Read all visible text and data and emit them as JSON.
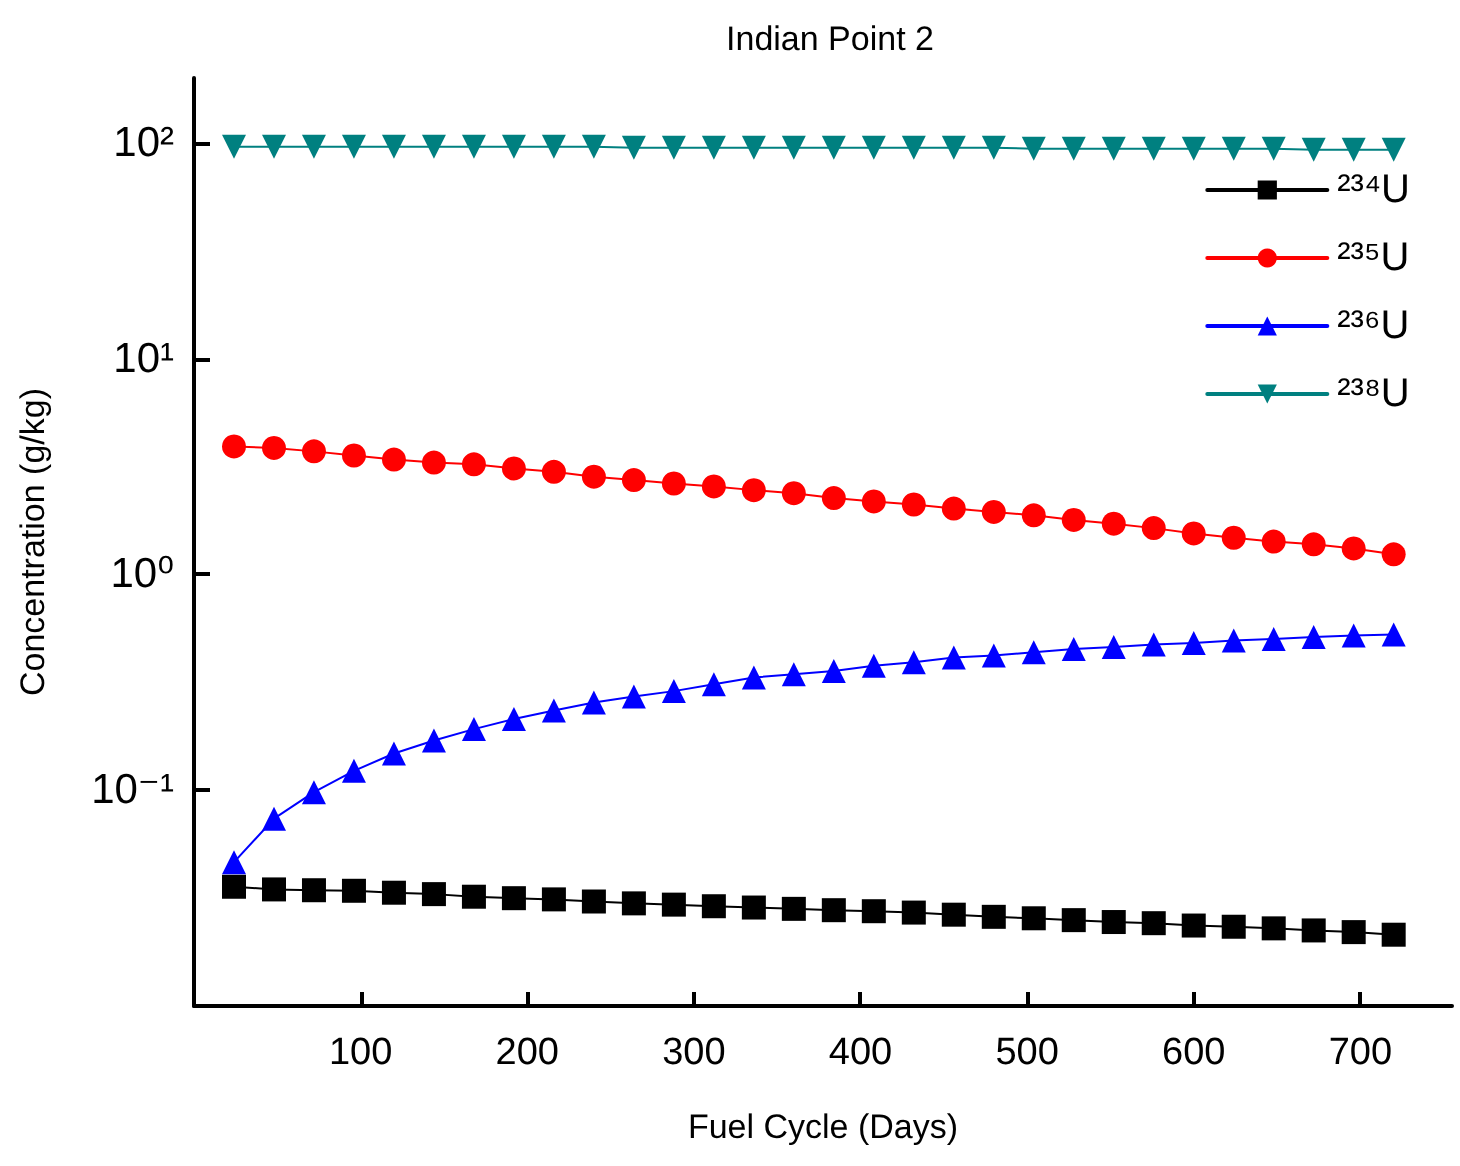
{
  "chart_data": {
    "type": "line",
    "title": "Indian Point 2",
    "xlabel": "Fuel Cycle (Days)",
    "ylabel": "Concentration (g/kg)",
    "x": [
      24,
      48,
      72,
      96,
      120,
      144,
      168,
      192,
      216,
      240,
      264,
      288,
      312,
      336,
      360,
      384,
      408,
      432,
      456,
      480,
      504,
      528,
      552,
      576,
      600,
      624,
      648,
      672,
      696,
      720
    ],
    "series": [
      {
        "name": "²³⁴U",
        "color": "#000000",
        "marker": "square",
        "values": [
          0.0357,
          0.0347,
          0.0344,
          0.0342,
          0.0335,
          0.033,
          0.0321,
          0.0316,
          0.0312,
          0.0305,
          0.0299,
          0.0295,
          0.029,
          0.0286,
          0.0282,
          0.0278,
          0.0275,
          0.0271,
          0.0265,
          0.0259,
          0.0255,
          0.025,
          0.0245,
          0.0242,
          0.0236,
          0.0233,
          0.0229,
          0.0224,
          0.022,
          0.0214
        ]
      },
      {
        "name": "²³⁵U",
        "color": "#ff0000",
        "marker": "circle",
        "values": [
          3.92,
          3.86,
          3.72,
          3.56,
          3.41,
          3.3,
          3.24,
          3.1,
          2.99,
          2.84,
          2.74,
          2.64,
          2.56,
          2.46,
          2.38,
          2.26,
          2.18,
          2.11,
          2.02,
          1.95,
          1.88,
          1.79,
          1.72,
          1.64,
          1.55,
          1.48,
          1.42,
          1.38,
          1.32,
          1.24
        ]
      },
      {
        "name": "²³⁶U",
        "color": "#0000ff",
        "marker": "triangle",
        "values": [
          0.0464,
          0.0738,
          0.098,
          0.123,
          0.148,
          0.17,
          0.192,
          0.214,
          0.234,
          0.255,
          0.272,
          0.288,
          0.31,
          0.333,
          0.345,
          0.357,
          0.378,
          0.392,
          0.412,
          0.421,
          0.436,
          0.452,
          0.461,
          0.474,
          0.481,
          0.494,
          0.502,
          0.513,
          0.521,
          0.527
        ]
      },
      {
        "name": "²³⁸U",
        "color": "#008080",
        "marker": "triangle-down",
        "values": [
          96,
          96,
          96,
          96,
          96,
          96,
          96,
          96,
          96,
          96,
          95,
          95,
          95,
          95,
          95,
          95,
          95,
          95,
          95,
          95,
          94,
          94,
          94,
          94,
          94,
          94,
          94,
          93,
          93,
          93
        ]
      }
    ],
    "xlim": [
      0,
      755
    ],
    "xticks": [
      100,
      200,
      300,
      400,
      500,
      600,
      700
    ],
    "ylim": [
      0.01,
      200
    ],
    "log": "y",
    "yticks": [
      {
        "value": 0.1,
        "label": "10⁻¹"
      },
      {
        "value": 1,
        "label": "10⁰"
      },
      {
        "value": 10,
        "label": "10¹"
      },
      {
        "value": 100,
        "label": "10²"
      }
    ],
    "grid": false,
    "legend": "top right"
  }
}
